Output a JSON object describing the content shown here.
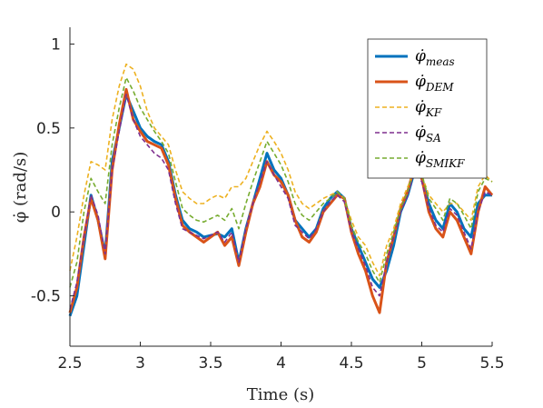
{
  "chart_data": {
    "type": "line",
    "title": "",
    "xlabel": "Time (s)",
    "ylabel": "φ̇ (rad/s)",
    "xlim": [
      2.5,
      5.5
    ],
    "ylim": [
      -0.8,
      1.1
    ],
    "xticks": [
      2.5,
      3,
      3.5,
      4,
      4.5,
      5,
      5.5
    ],
    "xtick_labels": [
      "2.5",
      "3",
      "3.5",
      "4",
      "4.5",
      "5",
      "5.5"
    ],
    "yticks": [
      -0.5,
      0,
      0.5,
      1
    ],
    "ytick_labels": [
      "-0.5",
      "0",
      "0.5",
      "1"
    ],
    "grid": false,
    "legend_position": "top-right",
    "x": [
      2.5,
      2.55,
      2.6,
      2.65,
      2.7,
      2.75,
      2.8,
      2.85,
      2.9,
      2.95,
      3.0,
      3.05,
      3.1,
      3.15,
      3.2,
      3.25,
      3.3,
      3.35,
      3.4,
      3.45,
      3.5,
      3.55,
      3.6,
      3.65,
      3.7,
      3.75,
      3.8,
      3.85,
      3.9,
      3.95,
      4.0,
      4.05,
      4.1,
      4.15,
      4.2,
      4.25,
      4.3,
      4.35,
      4.4,
      4.45,
      4.5,
      4.55,
      4.6,
      4.65,
      4.7,
      4.75,
      4.8,
      4.85,
      4.9,
      4.95,
      5.0,
      5.05,
      5.1,
      5.15,
      5.2,
      5.25,
      5.3,
      5.35,
      5.4,
      5.45,
      5.5
    ],
    "series": [
      {
        "name": "meas",
        "color": "#0072BD",
        "dash": "solid",
        "width": 3,
        "values": [
          -0.62,
          -0.5,
          -0.2,
          0.1,
          -0.05,
          -0.25,
          0.3,
          0.5,
          0.7,
          0.6,
          0.5,
          0.45,
          0.42,
          0.4,
          0.3,
          0.1,
          -0.05,
          -0.1,
          -0.12,
          -0.15,
          -0.14,
          -0.13,
          -0.15,
          -0.1,
          -0.3,
          -0.1,
          0.05,
          0.2,
          0.35,
          0.25,
          0.2,
          0.1,
          -0.05,
          -0.1,
          -0.15,
          -0.1,
          0.02,
          0.08,
          0.12,
          0.08,
          -0.1,
          -0.2,
          -0.3,
          -0.4,
          -0.45,
          -0.35,
          -0.2,
          0.0,
          0.1,
          0.25,
          0.2,
          0.05,
          -0.05,
          -0.1,
          0.05,
          0.0,
          -0.1,
          -0.15,
          0.05,
          0.1,
          0.1
        ]
      },
      {
        "name": "DEM",
        "color": "#D95319",
        "dash": "solid",
        "width": 3,
        "values": [
          -0.6,
          -0.45,
          -0.15,
          0.08,
          -0.05,
          -0.28,
          0.25,
          0.52,
          0.73,
          0.55,
          0.48,
          0.42,
          0.4,
          0.38,
          0.28,
          0.08,
          -0.08,
          -0.12,
          -0.15,
          -0.18,
          -0.15,
          -0.12,
          -0.2,
          -0.15,
          -0.32,
          -0.12,
          0.05,
          0.15,
          0.3,
          0.22,
          0.18,
          0.1,
          -0.05,
          -0.15,
          -0.18,
          -0.12,
          0.0,
          0.05,
          0.1,
          0.08,
          -0.12,
          -0.25,
          -0.35,
          -0.5,
          -0.6,
          -0.3,
          -0.15,
          0.02,
          0.12,
          0.28,
          0.2,
          0.0,
          -0.1,
          -0.15,
          0.0,
          -0.05,
          -0.15,
          -0.25,
          0.0,
          0.15,
          0.1
        ]
      },
      {
        "name": "KF",
        "color": "#EDB120",
        "dash": "dashed",
        "width": 1.6,
        "values": [
          -0.35,
          -0.15,
          0.1,
          0.3,
          0.28,
          0.25,
          0.55,
          0.75,
          0.88,
          0.85,
          0.75,
          0.6,
          0.5,
          0.45,
          0.4,
          0.25,
          0.12,
          0.08,
          0.05,
          0.05,
          0.08,
          0.1,
          0.08,
          0.15,
          0.15,
          0.2,
          0.3,
          0.4,
          0.48,
          0.42,
          0.35,
          0.25,
          0.12,
          0.05,
          0.02,
          0.05,
          0.08,
          0.1,
          0.12,
          0.08,
          -0.05,
          -0.15,
          -0.2,
          -0.3,
          -0.38,
          -0.2,
          -0.1,
          0.05,
          0.15,
          0.25,
          0.22,
          0.1,
          0.05,
          0.0,
          0.05,
          0.05,
          0.0,
          -0.05,
          0.15,
          0.22,
          0.18
        ]
      },
      {
        "name": "SA",
        "color": "#7E2F8E",
        "dash": "dashed",
        "width": 1.6,
        "values": [
          -0.58,
          -0.42,
          -0.15,
          0.1,
          -0.02,
          -0.25,
          0.25,
          0.48,
          0.7,
          0.55,
          0.45,
          0.4,
          0.35,
          0.32,
          0.25,
          0.05,
          -0.1,
          -0.12,
          -0.14,
          -0.16,
          -0.14,
          -0.12,
          -0.18,
          -0.12,
          -0.3,
          -0.1,
          0.05,
          0.18,
          0.3,
          0.22,
          0.15,
          0.08,
          -0.08,
          -0.12,
          -0.16,
          -0.1,
          0.0,
          0.06,
          0.1,
          0.06,
          -0.12,
          -0.22,
          -0.32,
          -0.45,
          -0.5,
          -0.3,
          -0.15,
          0.0,
          0.1,
          0.25,
          0.18,
          0.02,
          -0.08,
          -0.12,
          0.02,
          -0.02,
          -0.12,
          -0.22,
          0.0,
          0.12,
          0.1
        ]
      },
      {
        "name": "SMIKF",
        "color": "#77AC30",
        "dash": "dashed",
        "width": 1.6,
        "values": [
          -0.45,
          -0.3,
          0.0,
          0.2,
          0.12,
          0.05,
          0.4,
          0.62,
          0.8,
          0.72,
          0.62,
          0.55,
          0.48,
          0.42,
          0.35,
          0.18,
          0.02,
          -0.02,
          -0.05,
          -0.06,
          -0.04,
          -0.02,
          -0.05,
          0.02,
          -0.1,
          0.05,
          0.18,
          0.3,
          0.42,
          0.35,
          0.28,
          0.18,
          0.05,
          -0.02,
          -0.05,
          0.0,
          0.05,
          0.08,
          0.12,
          0.08,
          -0.08,
          -0.18,
          -0.25,
          -0.35,
          -0.42,
          -0.25,
          -0.12,
          0.02,
          0.12,
          0.28,
          0.22,
          0.08,
          0.02,
          -0.05,
          0.08,
          0.05,
          -0.02,
          -0.1,
          0.12,
          0.2,
          0.18
        ]
      }
    ]
  },
  "legend_entries": [
    {
      "symbol": "φ̇",
      "sub": "meas"
    },
    {
      "symbol": "φ̇",
      "sub": "DEM"
    },
    {
      "symbol": "φ̇",
      "sub": "KF"
    },
    {
      "symbol": "φ̇",
      "sub": "SA"
    },
    {
      "symbol": "φ̇",
      "sub": "SMIKF"
    }
  ]
}
